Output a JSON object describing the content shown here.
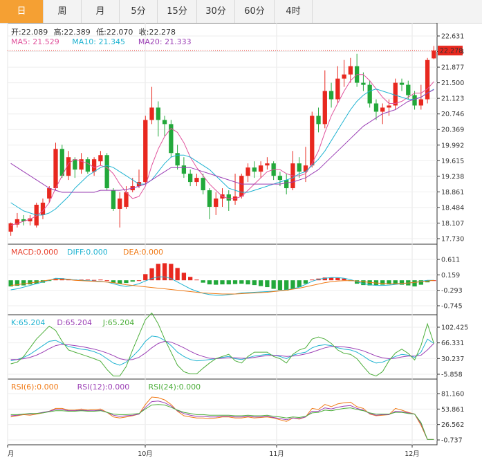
{
  "tabs": [
    {
      "label": "日",
      "active": true
    },
    {
      "label": "周",
      "active": false
    },
    {
      "label": "月",
      "active": false
    },
    {
      "label": "5分",
      "active": false
    },
    {
      "label": "15分",
      "active": false
    },
    {
      "label": "30分",
      "active": false
    },
    {
      "label": "60分",
      "active": false
    },
    {
      "label": "4时",
      "active": false
    }
  ],
  "chart_data": {
    "type": "candlestick",
    "ohlc_header": {
      "open_label": "开:",
      "open": "22.089",
      "high_label": "高:",
      "high": "22.389",
      "low_label": "低:",
      "low": "22.070",
      "close_label": "收:",
      "close": "22.278"
    },
    "ma_header": [
      {
        "label": "MA5: 21.529",
        "color": "#e0529c"
      },
      {
        "label": "MA10: 21.345",
        "color": "#1fb3d1"
      },
      {
        "label": "MA20: 21.333",
        "color": "#9b3fb5"
      }
    ],
    "price_axis": {
      "ticks": [
        "22.631",
        "22.254",
        "21.877",
        "21.500",
        "21.123",
        "20.746",
        "20.369",
        "19.992",
        "19.615",
        "19.238",
        "18.861",
        "18.484",
        "18.107",
        "17.730"
      ],
      "min": 17.73,
      "max": 22.631,
      "last": "22.278"
    },
    "x_ticks": [
      "月",
      "10月",
      "11月",
      "12月"
    ],
    "candles": [
      [
        17.9,
        18.1,
        18.12,
        17.8
      ],
      [
        18.07,
        18.2,
        18.35,
        18.0
      ],
      [
        18.2,
        18.15,
        18.3,
        18.05
      ],
      [
        18.15,
        18.22,
        18.3,
        18.05
      ],
      [
        18.05,
        18.55,
        18.6,
        18.0
      ],
      [
        18.3,
        18.6,
        18.7,
        18.2
      ],
      [
        18.7,
        18.95,
        19.0,
        18.6
      ],
      [
        18.95,
        19.9,
        20.05,
        18.9
      ],
      [
        19.9,
        19.25,
        20.0,
        19.2
      ],
      [
        19.25,
        19.7,
        19.85,
        19.15
      ],
      [
        19.65,
        19.4,
        19.7,
        19.2
      ],
      [
        19.4,
        19.65,
        19.8,
        19.3
      ],
      [
        19.65,
        19.35,
        19.7,
        19.3
      ],
      [
        19.35,
        19.65,
        19.7,
        19.25
      ],
      [
        19.6,
        19.75,
        19.85,
        19.5
      ],
      [
        19.75,
        18.95,
        19.8,
        18.9
      ],
      [
        18.9,
        18.45,
        18.95,
        18.4
      ],
      [
        18.45,
        18.7,
        18.85,
        18.0
      ],
      [
        18.5,
        18.85,
        19.0,
        18.45
      ],
      [
        18.9,
        19.0,
        19.2,
        18.85
      ],
      [
        19.0,
        19.1,
        19.4,
        18.95
      ],
      [
        19.1,
        20.6,
        20.7,
        19.05
      ],
      [
        20.6,
        20.9,
        21.4,
        20.5
      ],
      [
        20.9,
        20.6,
        21.05,
        20.2
      ],
      [
        20.6,
        20.5,
        20.7,
        20.2
      ],
      [
        20.5,
        19.8,
        20.6,
        19.7
      ],
      [
        19.8,
        19.5,
        20.0,
        19.4
      ],
      [
        19.5,
        19.3,
        19.7,
        19.2
      ],
      [
        19.3,
        19.1,
        19.4,
        19.0
      ],
      [
        19.1,
        19.2,
        19.3,
        19.0
      ],
      [
        19.2,
        18.9,
        19.3,
        18.8
      ],
      [
        18.9,
        18.5,
        18.95,
        18.2
      ],
      [
        18.5,
        18.7,
        18.85,
        18.3
      ],
      [
        18.7,
        18.8,
        18.95,
        18.5
      ],
      [
        18.8,
        18.65,
        18.9,
        18.4
      ],
      [
        18.65,
        18.75,
        19.3,
        18.55
      ],
      [
        18.75,
        19.25,
        19.3,
        18.7
      ],
      [
        19.25,
        19.45,
        19.55,
        19.1
      ],
      [
        19.45,
        19.35,
        19.6,
        19.2
      ],
      [
        19.35,
        19.5,
        19.6,
        19.2
      ],
      [
        19.5,
        19.55,
        19.7,
        19.4
      ],
      [
        19.55,
        19.25,
        19.6,
        19.15
      ],
      [
        19.25,
        19.15,
        19.35,
        19.0
      ],
      [
        19.15,
        18.95,
        19.3,
        18.8
      ],
      [
        18.95,
        19.55,
        19.85,
        18.9
      ],
      [
        19.55,
        19.35,
        19.7,
        19.2
      ],
      [
        19.35,
        19.5,
        19.95,
        19.1
      ],
      [
        19.5,
        20.7,
        20.8,
        19.45
      ],
      [
        20.7,
        20.5,
        20.9,
        20.3
      ],
      [
        20.5,
        21.3,
        21.8,
        20.4
      ],
      [
        21.3,
        21.1,
        21.5,
        20.9
      ],
      [
        21.1,
        21.6,
        21.9,
        21.0
      ],
      [
        21.6,
        21.7,
        22.05,
        21.4
      ],
      [
        21.7,
        21.9,
        22.1,
        21.5
      ],
      [
        21.9,
        21.5,
        22.2,
        21.4
      ],
      [
        21.5,
        21.45,
        21.75,
        21.3
      ],
      [
        21.45,
        21.0,
        21.55,
        20.9
      ],
      [
        21.0,
        20.8,
        21.1,
        20.6
      ],
      [
        20.8,
        20.9,
        21.0,
        20.5
      ],
      [
        20.9,
        20.95,
        21.1,
        20.7
      ],
      [
        20.95,
        21.5,
        21.6,
        20.85
      ],
      [
        21.5,
        21.45,
        21.6,
        21.3
      ],
      [
        21.45,
        21.2,
        21.55,
        21.1
      ],
      [
        21.2,
        20.95,
        21.3,
        20.85
      ],
      [
        20.95,
        21.1,
        21.45,
        20.85
      ],
      [
        21.1,
        22.05,
        22.1,
        21.0
      ],
      [
        22.089,
        22.278,
        22.389,
        22.07
      ]
    ],
    "ma_lines": {
      "ma5": [
        18.05,
        18.1,
        18.15,
        18.2,
        18.28,
        18.4,
        18.6,
        18.95,
        19.25,
        19.55,
        19.65,
        19.6,
        19.55,
        19.45,
        19.5,
        19.45,
        19.3,
        19.05,
        18.85,
        18.7,
        18.75,
        19.0,
        19.5,
        19.9,
        20.2,
        20.4,
        20.3,
        20.05,
        19.7,
        19.45,
        19.25,
        19.05,
        18.9,
        18.75,
        18.7,
        18.7,
        18.75,
        18.9,
        19.05,
        19.2,
        19.35,
        19.4,
        19.4,
        19.3,
        19.25,
        19.25,
        19.3,
        19.55,
        19.85,
        20.3,
        20.7,
        21.0,
        21.3,
        21.55,
        21.7,
        21.7,
        21.55,
        21.35,
        21.15,
        21.0,
        21.0,
        21.05,
        21.15,
        21.25,
        21.25,
        21.35,
        21.529
      ],
      "ma10": [
        18.6,
        18.5,
        18.4,
        18.35,
        18.3,
        18.3,
        18.35,
        18.45,
        18.6,
        18.75,
        18.95,
        19.1,
        19.25,
        19.35,
        19.45,
        19.5,
        19.45,
        19.35,
        19.25,
        19.15,
        19.05,
        19.05,
        19.15,
        19.35,
        19.55,
        19.7,
        19.75,
        19.75,
        19.7,
        19.6,
        19.5,
        19.4,
        19.25,
        19.1,
        18.95,
        18.9,
        18.85,
        18.85,
        18.9,
        18.95,
        19.0,
        19.05,
        19.1,
        19.15,
        19.2,
        19.3,
        19.35,
        19.5,
        19.65,
        19.85,
        20.1,
        20.35,
        20.6,
        20.85,
        21.05,
        21.2,
        21.3,
        21.35,
        21.3,
        21.25,
        21.2,
        21.15,
        21.1,
        21.1,
        21.15,
        21.25,
        21.345
      ],
      "ma20": [
        19.55,
        19.45,
        19.35,
        19.25,
        19.15,
        19.05,
        18.95,
        18.9,
        18.85,
        18.85,
        18.85,
        18.85,
        18.85,
        18.85,
        18.9,
        18.9,
        18.9,
        18.9,
        18.92,
        18.95,
        19.0,
        19.05,
        19.15,
        19.25,
        19.35,
        19.45,
        19.45,
        19.45,
        19.45,
        19.4,
        19.35,
        19.3,
        19.25,
        19.2,
        19.15,
        19.1,
        19.05,
        19.05,
        19.05,
        19.05,
        19.05,
        19.05,
        19.05,
        19.08,
        19.1,
        19.15,
        19.2,
        19.3,
        19.4,
        19.55,
        19.7,
        19.85,
        20.0,
        20.15,
        20.3,
        20.45,
        20.55,
        20.65,
        20.75,
        20.8,
        20.85,
        20.95,
        21.05,
        21.1,
        21.15,
        21.25,
        21.333
      ]
    },
    "macd": {
      "header": [
        {
          "label": "MACD:0.000",
          "color": "#e8402d"
        },
        {
          "label": "DIFF:0.000",
          "color": "#1fb3d1"
        },
        {
          "label": "DEA:0.000",
          "color": "#f07a16"
        }
      ],
      "ticks": [
        "0.611",
        "0.159",
        "-0.293",
        "-0.745"
      ],
      "min": -0.745,
      "max": 0.611,
      "hist": [
        -0.18,
        -0.16,
        -0.15,
        -0.12,
        -0.1,
        -0.07,
        -0.02,
        0.05,
        0.06,
        0.04,
        0.02,
        0.02,
        0.02,
        0.01,
        0.02,
        0.0,
        -0.07,
        -0.1,
        -0.08,
        -0.04,
        0.0,
        0.18,
        0.35,
        0.48,
        0.5,
        0.48,
        0.36,
        0.22,
        0.1,
        0.02,
        -0.07,
        -0.12,
        -0.13,
        -0.12,
        -0.12,
        -0.11,
        -0.1,
        -0.12,
        -0.14,
        -0.17,
        -0.2,
        -0.25,
        -0.28,
        -0.3,
        -0.25,
        -0.2,
        -0.1,
        0.02,
        0.05,
        0.08,
        0.08,
        0.07,
        0.05,
        -0.02,
        -0.1,
        -0.14,
        -0.15,
        -0.14,
        -0.13,
        -0.12,
        -0.12,
        -0.13,
        -0.15,
        -0.18,
        -0.13,
        -0.06,
        0.0
      ],
      "diff": [
        -0.28,
        -0.25,
        -0.2,
        -0.15,
        -0.1,
        -0.05,
        0.0,
        0.06,
        0.05,
        0.03,
        0.01,
        0.0,
        -0.01,
        -0.02,
        -0.03,
        -0.05,
        -0.1,
        -0.15,
        -0.18,
        -0.15,
        -0.1,
        -0.02,
        0.05,
        0.1,
        0.1,
        0.05,
        -0.05,
        -0.15,
        -0.25,
        -0.32,
        -0.38,
        -0.42,
        -0.44,
        -0.44,
        -0.42,
        -0.4,
        -0.37,
        -0.36,
        -0.35,
        -0.34,
        -0.33,
        -0.32,
        -0.3,
        -0.28,
        -0.25,
        -0.2,
        -0.12,
        -0.03,
        0.03,
        0.06,
        0.08,
        0.08,
        0.06,
        0.02,
        -0.04,
        -0.1,
        -0.13,
        -0.15,
        -0.15,
        -0.14,
        -0.12,
        -0.1,
        -0.08,
        -0.06,
        -0.03,
        0.0,
        0.0
      ],
      "dea": [
        -0.15,
        -0.13,
        -0.1,
        -0.08,
        -0.05,
        -0.02,
        0.01,
        0.03,
        0.03,
        0.02,
        0.0,
        -0.01,
        -0.02,
        -0.03,
        -0.04,
        -0.05,
        -0.07,
        -0.1,
        -0.13,
        -0.15,
        -0.17,
        -0.19,
        -0.21,
        -0.23,
        -0.25,
        -0.27,
        -0.29,
        -0.31,
        -0.33,
        -0.35,
        -0.37,
        -0.38,
        -0.39,
        -0.4,
        -0.4,
        -0.4,
        -0.39,
        -0.38,
        -0.37,
        -0.36,
        -0.35,
        -0.33,
        -0.31,
        -0.29,
        -0.26,
        -0.23,
        -0.19,
        -0.15,
        -0.11,
        -0.07,
        -0.04,
        -0.02,
        -0.01,
        -0.01,
        -0.02,
        -0.04,
        -0.06,
        -0.08,
        -0.09,
        -0.1,
        -0.1,
        -0.09,
        -0.08,
        -0.06,
        -0.04,
        -0.02,
        0.0
      ]
    },
    "kdj": {
      "header": [
        {
          "label": "K:65.204",
          "color": "#1fb3d1"
        },
        {
          "label": "D:65.204",
          "color": "#9b3fb5"
        },
        {
          "label": "J:65.204",
          "color": "#4cae3a"
        }
      ],
      "ticks": [
        "102.425",
        "66.331",
        "30.237",
        "-5.858"
      ],
      "min": -5.858,
      "max": 102.425,
      "k": [
        25,
        28,
        33,
        40,
        50,
        60,
        70,
        72,
        65,
        58,
        55,
        52,
        50,
        46,
        40,
        30,
        20,
        15,
        22,
        35,
        50,
        70,
        82,
        80,
        72,
        60,
        45,
        35,
        28,
        25,
        26,
        28,
        30,
        33,
        35,
        30,
        28,
        32,
        36,
        38,
        40,
        38,
        35,
        30,
        38,
        42,
        45,
        55,
        60,
        62,
        60,
        55,
        52,
        50,
        45,
        36,
        26,
        20,
        22,
        28,
        35,
        40,
        38,
        33,
        45,
        75,
        65.204
      ],
      "d": [
        28,
        28,
        30,
        33,
        38,
        45,
        53,
        60,
        63,
        62,
        60,
        58,
        55,
        52,
        48,
        43,
        37,
        30,
        27,
        28,
        33,
        43,
        55,
        65,
        70,
        68,
        62,
        55,
        47,
        40,
        35,
        31,
        30,
        31,
        32,
        32,
        31,
        31,
        33,
        35,
        37,
        38,
        37,
        35,
        36,
        38,
        41,
        45,
        50,
        55,
        58,
        58,
        57,
        55,
        52,
        48,
        42,
        36,
        32,
        30,
        31,
        34,
        36,
        36,
        38,
        50,
        65.204
      ],
      "j": [
        18,
        22,
        35,
        55,
        75,
        90,
        105,
        95,
        70,
        50,
        45,
        40,
        35,
        30,
        24,
        5,
        -10,
        -10,
        12,
        50,
        85,
        120,
        135,
        110,
        75,
        45,
        15,
        0,
        -5,
        -5,
        8,
        20,
        30,
        35,
        40,
        25,
        20,
        35,
        45,
        45,
        45,
        35,
        30,
        20,
        40,
        50,
        55,
        75,
        80,
        75,
        65,
        50,
        42,
        40,
        30,
        12,
        -5,
        -10,
        0,
        25,
        43,
        52,
        42,
        27,
        60,
        110,
        65.204
      ]
    },
    "rsi": {
      "header": [
        {
          "label": "RSI(6):0.000",
          "color": "#f07a16"
        },
        {
          "label": "RSI(12):0.000",
          "color": "#9b3fb5"
        },
        {
          "label": "RSI(24):0.000",
          "color": "#4cae3a"
        }
      ],
      "ticks": [
        "81.160",
        "53.861",
        "26.562",
        "-0.737"
      ],
      "min": -0.737,
      "max": 81.16,
      "r6": [
        40,
        42,
        44,
        43,
        45,
        47,
        50,
        55,
        55,
        52,
        52,
        54,
        52,
        53,
        54,
        48,
        40,
        38,
        40,
        42,
        45,
        62,
        75,
        74,
        70,
        62,
        50,
        42,
        40,
        38,
        38,
        37,
        38,
        40,
        40,
        38,
        38,
        40,
        38,
        39,
        40,
        38,
        35,
        32,
        38,
        36,
        40,
        55,
        53,
        62,
        58,
        63,
        65,
        66,
        58,
        55,
        45,
        42,
        43,
        44,
        55,
        52,
        48,
        45,
        25,
        0,
        0
      ],
      "r12": [
        42,
        43,
        45,
        45,
        46,
        48,
        50,
        53,
        53,
        51,
        51,
        52,
        51,
        51,
        52,
        48,
        43,
        41,
        42,
        43,
        45,
        57,
        67,
        68,
        65,
        59,
        51,
        46,
        43,
        41,
        41,
        40,
        40,
        41,
        41,
        40,
        40,
        41,
        40,
        40,
        41,
        39,
        37,
        35,
        38,
        37,
        40,
        50,
        50,
        56,
        54,
        57,
        59,
        60,
        55,
        52,
        46,
        43,
        44,
        44,
        50,
        49,
        47,
        45,
        28,
        0,
        0
      ],
      "r24": [
        44,
        44,
        45,
        46,
        46,
        47,
        49,
        51,
        51,
        50,
        50,
        51,
        50,
        50,
        51,
        48,
        45,
        44,
        44,
        45,
        46,
        54,
        61,
        62,
        61,
        57,
        52,
        48,
        46,
        44,
        44,
        43,
        43,
        43,
        43,
        42,
        42,
        43,
        42,
        42,
        43,
        41,
        40,
        38,
        40,
        39,
        41,
        47,
        48,
        52,
        51,
        53,
        55,
        56,
        53,
        51,
        47,
        45,
        45,
        45,
        48,
        48,
        46,
        45,
        30,
        0,
        0
      ]
    }
  }
}
